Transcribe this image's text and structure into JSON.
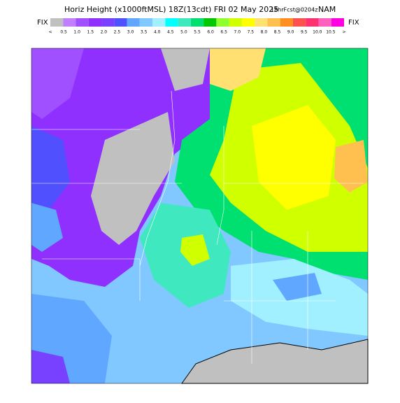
{
  "header": {
    "title": "Horiz Height (x1000ftMSL) 18Z(13cdt) FRI 02 May 2025",
    "forecast": "18hrFcst@0204z",
    "model": "NAM"
  },
  "legend": {
    "left_label": "FIX",
    "right_label": "FIX",
    "colors": [
      "#c0c0c0",
      "#c080ff",
      "#a050ff",
      "#9030ff",
      "#7840ff",
      "#5050ff",
      "#60a8ff",
      "#80c8ff",
      "#a0f0ff",
      "#00ffff",
      "#40e8c0",
      "#00e070",
      "#00c800",
      "#90ff30",
      "#d0ff00",
      "#ffff00",
      "#ffe070",
      "#ffc050",
      "#ff9020",
      "#ff5050",
      "#ff3070",
      "#ff60c0",
      "#ff00e0"
    ],
    "labels": [
      "<",
      "0.5",
      "1.0",
      "1.5",
      "2.0",
      "2.5",
      "3.0",
      "3.5",
      "4.0",
      "4.5",
      "5.0",
      "5.5",
      "6.0",
      "6.5",
      "7.0",
      "7.5",
      "8.0",
      "8.5",
      "9.0",
      "9.5",
      "10.0",
      "10.5",
      ">"
    ]
  }
}
